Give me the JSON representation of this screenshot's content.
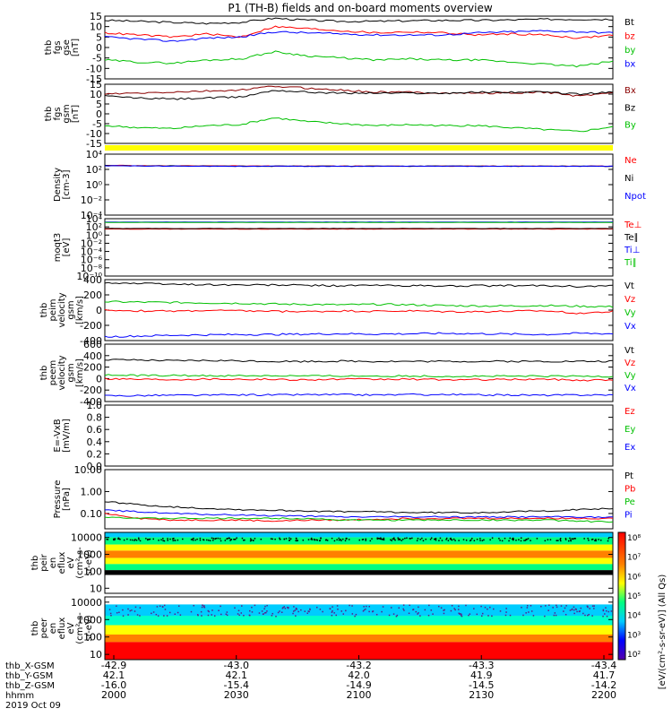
{
  "title": "P1 (TH-B) fields and on-board moments overview",
  "chart_data": [
    {
      "panel": "fgs_gse",
      "type": "line",
      "ylabel_lines": [
        "thb",
        "fgs",
        "gse",
        "[nT]"
      ],
      "yticks": [
        "15",
        "10",
        "5",
        "0",
        "-5",
        "-10",
        "-15"
      ],
      "ylim": [
        -15,
        15
      ],
      "series": [
        {
          "name": "Bt",
          "color": "#000000",
          "values": [
            13,
            12.5,
            12,
            11.5,
            12,
            14,
            13,
            12.5,
            12.5,
            12.8,
            13,
            13,
            13.2,
            13.5,
            13.5,
            13.5
          ]
        },
        {
          "name": "bz",
          "color": "#ff0000",
          "values": [
            7,
            6,
            5,
            6.5,
            5,
            10,
            9,
            8,
            7,
            7.5,
            7,
            6,
            6.5,
            6,
            4.5,
            6
          ]
        },
        {
          "name": "by",
          "color": "#00c000",
          "values": [
            -6,
            -7,
            -7.5,
            -6,
            -5.5,
            -2,
            -4,
            -5,
            -6,
            -5.5,
            -6,
            -6,
            -7,
            -8,
            -9,
            -6.5
          ]
        },
        {
          "name": "bx",
          "color": "#0000ff",
          "values": [
            5,
            4,
            3,
            4.5,
            5,
            7.5,
            7,
            6.5,
            6,
            6,
            6,
            7,
            7.5,
            8,
            7.5,
            7
          ]
        }
      ]
    },
    {
      "panel": "fgs_gsm",
      "type": "line",
      "ylabel_lines": [
        "thb",
        "fgs",
        "gsm",
        "[nT]"
      ],
      "yticks": [
        "15",
        "10",
        "5",
        "0",
        "-5",
        "-10",
        "-15"
      ],
      "ylim": [
        -15,
        15
      ],
      "series": [
        {
          "name": "Bx",
          "color": "#8b0000",
          "values": [
            10,
            10.5,
            11,
            11.5,
            12,
            14,
            13,
            12,
            11,
            11,
            10.5,
            10.5,
            10.5,
            11,
            9,
            11
          ]
        },
        {
          "name": "Bz",
          "color": "#000000",
          "values": [
            9,
            8,
            7.5,
            8,
            8.5,
            12,
            11,
            10.5,
            10.5,
            10.5,
            10.5,
            11,
            11,
            11,
            10,
            11
          ]
        },
        {
          "name": "By",
          "color": "#00c000",
          "values": [
            -6,
            -7,
            -7.5,
            -6,
            -5.5,
            -2,
            -4,
            -5,
            -6,
            -5.5,
            -6,
            -6,
            -7,
            -8,
            -9,
            -6.5
          ]
        }
      ]
    },
    {
      "panel": "density",
      "type": "line",
      "ylabel_lines": [
        "Density",
        "[cm-3]"
      ],
      "yticks": [
        "10⁴",
        "10²",
        "10⁰",
        "10⁻²",
        "10⁻⁴"
      ],
      "yscale": "log",
      "ylim": [
        0.0001,
        10000
      ],
      "series": [
        {
          "name": "Ne",
          "color": "#ff0000",
          "values": [
            350,
            300,
            290,
            280,
            280,
            270,
            275,
            270,
            270,
            270,
            270,
            270,
            270,
            270,
            270,
            270
          ]
        },
        {
          "name": "Ni",
          "color": "#000000",
          "values": [
            330,
            290,
            280,
            270,
            270,
            265,
            265,
            265,
            265,
            265,
            265,
            265,
            265,
            265,
            265,
            265
          ]
        },
        {
          "name": "Npot",
          "color": "#0000ff",
          "values": [
            300,
            280,
            270,
            260,
            260,
            260,
            260,
            260,
            260,
            260,
            260,
            260,
            260,
            260,
            260,
            260
          ]
        }
      ]
    },
    {
      "panel": "temperature",
      "type": "line",
      "ylabel_lines": [
        "moqt3",
        "[eV]"
      ],
      "yticks": [
        "10⁴",
        "10²",
        "10⁰",
        "10⁻²",
        "10⁻⁴",
        "10⁻⁶",
        "10⁻⁸",
        "10⁻¹⁰"
      ],
      "yscale": "log",
      "ylim": [
        1e-10,
        10000
      ],
      "series": [
        {
          "name": "Te⊥",
          "color": "#ff0000",
          "values": [
            30,
            30,
            30,
            30,
            30,
            30,
            30,
            30,
            30,
            30,
            30,
            30,
            30,
            30,
            30,
            30
          ]
        },
        {
          "name": "Te∥",
          "color": "#000000",
          "values": [
            40,
            40,
            40,
            40,
            40,
            40,
            40,
            40,
            40,
            40,
            40,
            40,
            40,
            40,
            40,
            40
          ]
        },
        {
          "name": "Ti⊥",
          "color": "#0000ff",
          "values": [
            1500,
            1500,
            1500,
            1500,
            1500,
            1500,
            1500,
            1500,
            1500,
            1500,
            1500,
            1500,
            1500,
            1500,
            1500,
            1500
          ]
        },
        {
          "name": "Ti∥",
          "color": "#00c000",
          "values": [
            1200,
            1200,
            1200,
            1200,
            1200,
            1200,
            1200,
            1200,
            1200,
            1200,
            1200,
            1200,
            1200,
            1200,
            1200,
            1200
          ]
        }
      ]
    },
    {
      "panel": "peim_velocity",
      "type": "line",
      "ylabel_lines": [
        "thb",
        "peim",
        "velocity",
        "gsm",
        "[km/s]"
      ],
      "yticks": [
        "400",
        "200",
        "0",
        "-200",
        "-400"
      ],
      "ylim": [
        -400,
        400
      ],
      "series": [
        {
          "name": "Vt",
          "color": "#000000",
          "values": [
            360,
            350,
            340,
            335,
            330,
            330,
            325,
            320,
            325,
            320,
            315,
            320,
            320,
            320,
            310,
            320
          ]
        },
        {
          "name": "Vz",
          "color": "#ff0000",
          "values": [
            0,
            -10,
            -15,
            -5,
            -10,
            -15,
            -20,
            -10,
            -15,
            -10,
            -20,
            -20,
            -15,
            -10,
            -40,
            -20
          ]
        },
        {
          "name": "Vy",
          "color": "#00c000",
          "values": [
            110,
            105,
            100,
            95,
            90,
            80,
            75,
            70,
            75,
            70,
            60,
            55,
            55,
            60,
            50,
            45
          ]
        },
        {
          "name": "Vx",
          "color": "#0000ff",
          "values": [
            -350,
            -340,
            -330,
            -325,
            -320,
            -320,
            -315,
            -310,
            -315,
            -310,
            -305,
            -310,
            -315,
            -320,
            -305,
            -310
          ]
        }
      ]
    },
    {
      "panel": "peem_velocity",
      "type": "line",
      "ylabel_lines": [
        "thb",
        "peem",
        "velocity",
        "gsm",
        "[km/s]"
      ],
      "yticks": [
        "600",
        "400",
        "200",
        "0",
        "-200",
        "-400"
      ],
      "ylim": [
        -400,
        600
      ],
      "series": [
        {
          "name": "Vt",
          "color": "#000000",
          "values": [
            330,
            320,
            310,
            315,
            310,
            300,
            300,
            305,
            300,
            300,
            300,
            300,
            300,
            300,
            300,
            300
          ]
        },
        {
          "name": "Vz",
          "color": "#ff0000",
          "values": [
            0,
            -10,
            -15,
            -5,
            -10,
            -15,
            -20,
            -10,
            -15,
            -10,
            -20,
            -20,
            -15,
            -10,
            -30,
            -20
          ]
        },
        {
          "name": "Vy",
          "color": "#00c000",
          "values": [
            60,
            55,
            55,
            50,
            50,
            50,
            45,
            45,
            45,
            45,
            40,
            40,
            40,
            40,
            40,
            40
          ]
        },
        {
          "name": "Vx",
          "color": "#0000ff",
          "values": [
            -300,
            -295,
            -290,
            -290,
            -285,
            -285,
            -280,
            -280,
            -285,
            -280,
            -280,
            -285,
            -285,
            -290,
            -285,
            -285
          ]
        }
      ]
    },
    {
      "panel": "efield",
      "type": "line",
      "ylabel_lines": [
        "E=-VxB",
        "[mV/m]"
      ],
      "yticks": [
        "1.0",
        "0.8",
        "0.6",
        "0.4",
        "0.2",
        "0.0"
      ],
      "ylim": [
        0,
        1
      ],
      "series": [
        {
          "name": "Ez",
          "color": "#ff0000",
          "values": []
        },
        {
          "name": "Ey",
          "color": "#00c000",
          "values": []
        },
        {
          "name": "Ex",
          "color": "#0000ff",
          "values": []
        }
      ]
    },
    {
      "panel": "pressure",
      "type": "line",
      "ylabel_lines": [
        "Pressure",
        "[nPa]"
      ],
      "yticks": [
        "10.00",
        "1.00",
        "0.10"
      ],
      "yscale": "log",
      "ylim": [
        0.02,
        10
      ],
      "series": [
        {
          "name": "Pt",
          "color": "#000000",
          "values": [
            0.35,
            0.25,
            0.2,
            0.17,
            0.15,
            0.14,
            0.13,
            0.12,
            0.12,
            0.11,
            0.11,
            0.11,
            0.12,
            0.13,
            0.15,
            0.17
          ]
        },
        {
          "name": "Pb",
          "color": "#ff0000",
          "values": [
            0.1,
            0.06,
            0.05,
            0.05,
            0.05,
            0.045,
            0.05,
            0.05,
            0.055,
            0.06,
            0.06,
            0.06,
            0.06,
            0.06,
            0.06,
            0.06
          ]
        },
        {
          "name": "Pe",
          "color": "#00c000",
          "values": [
            0.07,
            0.06,
            0.06,
            0.06,
            0.06,
            0.06,
            0.06,
            0.05,
            0.05,
            0.05,
            0.05,
            0.05,
            0.05,
            0.05,
            0.045,
            0.04
          ]
        },
        {
          "name": "Pi",
          "color": "#0000ff",
          "values": [
            0.14,
            0.12,
            0.1,
            0.09,
            0.085,
            0.08,
            0.075,
            0.07,
            0.07,
            0.07,
            0.07,
            0.07,
            0.07,
            0.07,
            0.07,
            0.065
          ]
        }
      ]
    },
    {
      "panel": "peir_eflux",
      "type": "heatmap",
      "ylabel_lines": [
        "thb",
        "peir",
        "en",
        "eflux",
        "eV",
        "(cm²-s-",
        "sr-eV)"
      ],
      "yticks": [
        "10000",
        "1000",
        "100",
        "10"
      ],
      "yscale": "log",
      "ylim": [
        5,
        20000
      ]
    },
    {
      "panel": "peer_eflux",
      "type": "heatmap",
      "ylabel_lines": [
        "thb",
        "peer",
        "en",
        "eflux",
        "eV",
        "(cm²-s-",
        "sr-eV)"
      ],
      "yticks": [
        "10000",
        "1000",
        "100",
        "10"
      ],
      "yscale": "log",
      "ylim": [
        5,
        20000
      ]
    }
  ],
  "colorbar": {
    "ticks": [
      "10⁸",
      "10⁷",
      "10⁶",
      "10⁵",
      "10⁴",
      "10³",
      "10²"
    ],
    "label": "[eV/(cm²-s-sr-eV)] (All Qs)"
  },
  "xaxis": {
    "row_labels": [
      "thb_X-GSM",
      "thb_Y-GSM",
      "thb_Z-GSM",
      "hhmm",
      "2019 Oct 09"
    ],
    "ticks": [
      [
        "-42.9",
        "42.1",
        "-16.0",
        "2000"
      ],
      [
        "-43.0",
        "42.1",
        "-15.4",
        "2030"
      ],
      [
        "-43.2",
        "42.0",
        "-14.9",
        "2100"
      ],
      [
        "-43.3",
        "41.9",
        "-14.5",
        "2130"
      ],
      [
        "-43.4",
        "41.7",
        "-14.2",
        "2200"
      ]
    ]
  }
}
